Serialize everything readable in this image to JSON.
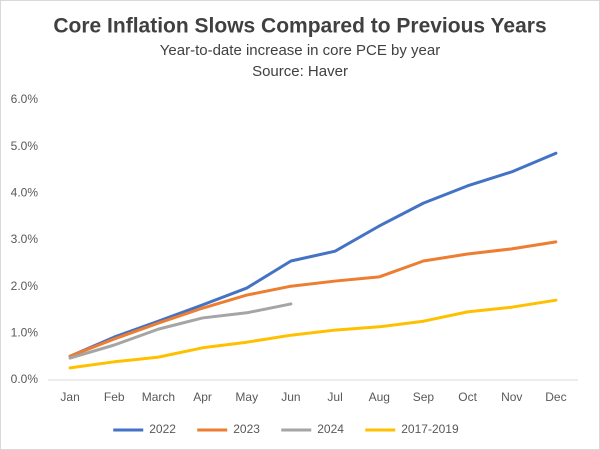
{
  "chart_data": {
    "type": "line",
    "title": "Core Inflation Slows Compared to Previous Years",
    "subtitle": "Year-to-date increase in core PCE by year",
    "source": "Source: Haver",
    "categories": [
      "Jan",
      "Feb",
      "March",
      "Apr",
      "May",
      "Jun",
      "Jul",
      "Aug",
      "Sep",
      "Oct",
      "Nov",
      "Dec"
    ],
    "series": [
      {
        "name": "2022",
        "color": "#4472c4",
        "values": [
          0.51,
          0.92,
          1.26,
          1.61,
          1.97,
          2.55,
          2.76,
          3.3,
          3.79,
          4.16,
          4.46,
          4.86
        ]
      },
      {
        "name": "2023",
        "color": "#ed7d31",
        "values": [
          0.51,
          0.88,
          1.22,
          1.54,
          1.82,
          2.01,
          2.12,
          2.21,
          2.55,
          2.7,
          2.81,
          2.96
        ]
      },
      {
        "name": "2024",
        "color": "#a5a5a5",
        "values": [
          0.47,
          0.75,
          1.09,
          1.33,
          1.44,
          1.63,
          null,
          null,
          null,
          null,
          null,
          null
        ]
      },
      {
        "name": "2017-2019",
        "color": "#ffc000",
        "values": [
          0.26,
          0.39,
          0.49,
          0.69,
          0.81,
          0.96,
          1.07,
          1.14,
          1.26,
          1.46,
          1.56,
          1.71
        ]
      }
    ],
    "ylim": [
      0,
      6
    ],
    "yticks": [
      {
        "value": 0,
        "label": "0.0%"
      },
      {
        "value": 1,
        "label": "1.0%"
      },
      {
        "value": 2,
        "label": "2.0%"
      },
      {
        "value": 3,
        "label": "3.0%"
      },
      {
        "value": 4,
        "label": "4.0%"
      },
      {
        "value": 5,
        "label": "5.0%"
      },
      {
        "value": 6,
        "label": "6.0%"
      }
    ],
    "grid": false,
    "legend": "bottom"
  }
}
